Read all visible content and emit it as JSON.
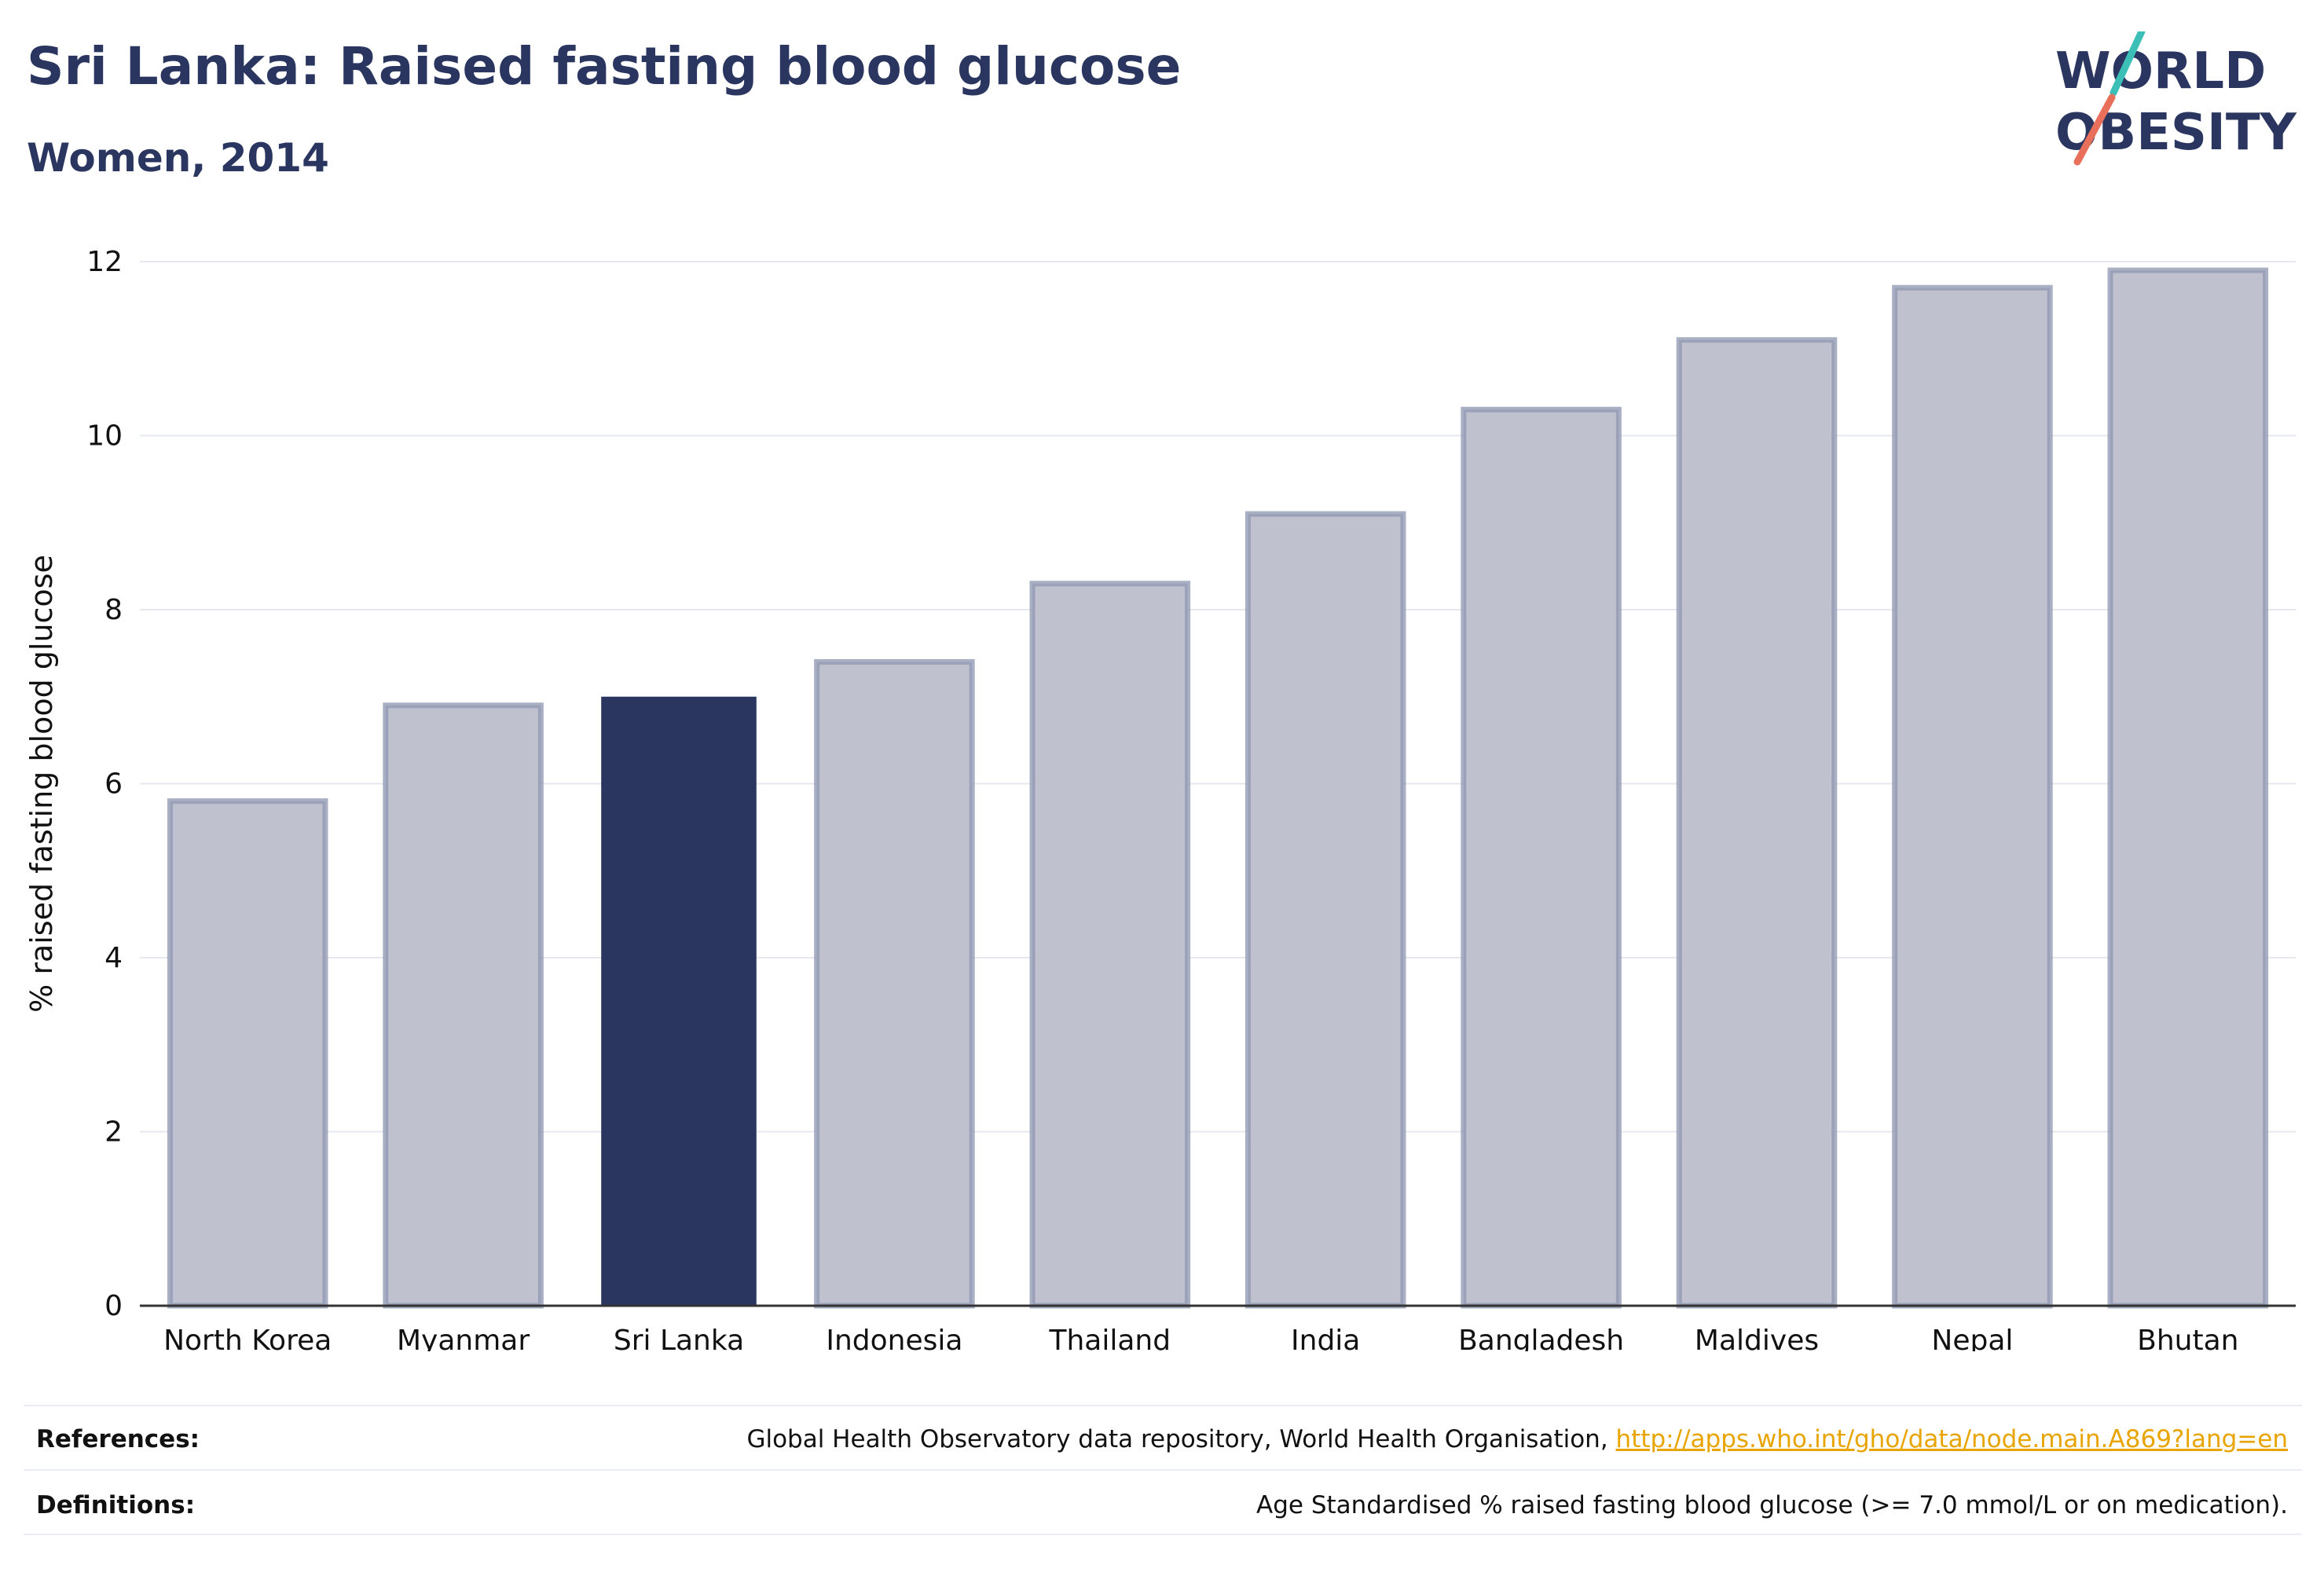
{
  "header": {
    "title": "Sri Lanka: Raised fasting blood glucose",
    "subtitle": "Women, 2014"
  },
  "logo": {
    "line1": "WORLD",
    "line2": "OBESITY",
    "color_text": "#2b3660",
    "color_teal": "#3bbfb6",
    "color_coral": "#e8705a"
  },
  "chart_data": {
    "type": "bar",
    "ylabel": "% raised fasting blood glucose",
    "ylim": [
      0,
      12
    ],
    "yticks": [
      0,
      2,
      4,
      6,
      8,
      10,
      12
    ],
    "grid": true,
    "categories": [
      "North Korea",
      "Myanmar",
      "Sri Lanka",
      "Indonesia",
      "Thailand",
      "India",
      "Bangladesh",
      "Maldives",
      "Nepal",
      "Bhutan"
    ],
    "values": [
      5.8,
      6.9,
      7.0,
      7.4,
      8.3,
      9.1,
      10.3,
      11.1,
      11.7,
      11.9
    ],
    "highlight": "Sri Lanka",
    "colors": {
      "highlight": "#2b3660",
      "bar_fill": "#bfc2ce",
      "bar_stroke": "#8e96b0"
    }
  },
  "footer": {
    "references_label": "References:",
    "references_text": "Global Health Observatory data repository, World Health Organisation, ",
    "references_link": "http://apps.who.int/gho/data/node.main.A869?lang=en",
    "definitions_label": "Definitions:",
    "definitions_text": "Age Standardised % raised fasting blood glucose (>= 7.0 mmol/L or on medication)."
  }
}
